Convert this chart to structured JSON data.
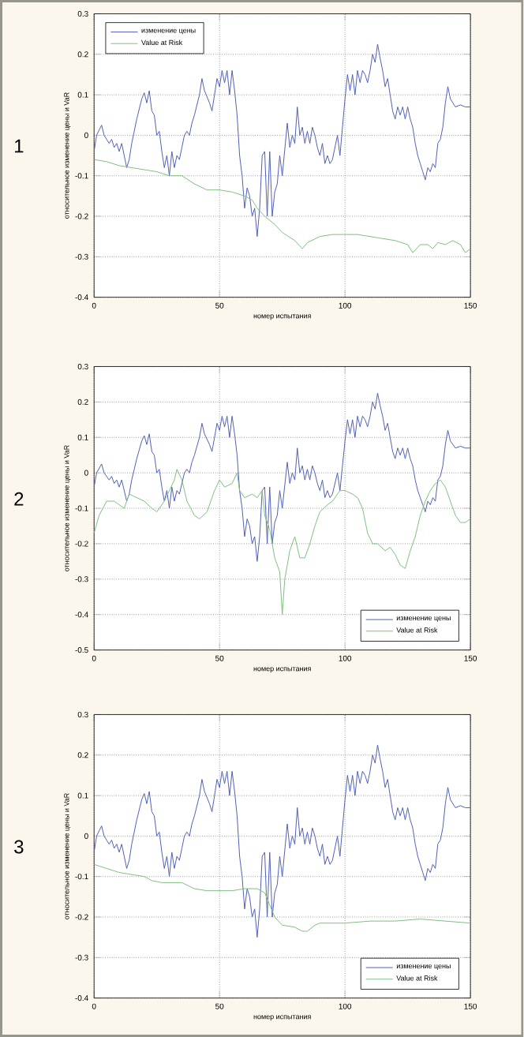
{
  "chart_data": [
    {
      "type": "line",
      "title": "1",
      "xlabel": "номер испытания",
      "ylabel": "относительное изменение цены и VaR",
      "xlim": [
        0,
        150
      ],
      "ylim": [
        -0.4,
        0.3
      ],
      "xticks": [
        0,
        50,
        100,
        150
      ],
      "yticks": [
        -0.4,
        -0.3,
        -0.2,
        -0.1,
        0,
        0.1,
        0.2,
        0.3
      ],
      "grid": true,
      "legend": "top left",
      "marker": "none",
      "line_style": "solid",
      "series": [
        {
          "name": "изменение цены",
          "color": "#5060b8",
          "x": [
            0,
            1,
            3,
            4,
            5,
            6,
            7,
            8,
            9,
            10,
            11,
            13,
            14,
            15,
            17,
            19,
            20,
            21,
            22,
            23,
            24,
            25,
            26,
            27,
            28,
            29,
            30,
            31,
            32,
            33,
            34,
            35,
            36,
            37,
            38,
            39,
            40,
            42,
            43,
            44,
            46,
            47,
            48,
            49,
            50,
            51,
            52,
            53,
            54,
            55,
            56,
            57,
            58,
            59,
            60,
            61,
            62,
            63,
            64,
            65,
            66,
            67,
            68,
            69,
            70,
            71,
            72,
            73,
            74,
            75,
            77,
            78,
            79,
            80,
            81,
            82,
            83,
            84,
            85,
            86,
            87,
            88,
            89,
            90,
            91,
            92,
            93,
            94,
            95,
            97,
            98,
            99,
            100,
            101,
            102,
            103,
            104,
            105,
            106,
            107,
            108,
            109,
            110,
            111,
            112,
            113,
            114,
            115,
            116,
            117,
            118,
            119,
            120,
            121,
            122,
            123,
            124,
            125,
            126,
            127,
            128,
            129,
            130,
            131,
            132,
            133,
            134,
            135,
            136,
            137,
            138,
            139,
            140,
            141,
            142,
            143,
            144,
            146,
            148,
            150
          ],
          "values": [
            -0.04,
            0.0,
            0.025,
            0.0,
            -0.01,
            -0.02,
            -0.01,
            -0.03,
            -0.02,
            -0.04,
            -0.02,
            -0.08,
            -0.06,
            -0.02,
            0.04,
            0.09,
            0.105,
            0.08,
            0.11,
            0.06,
            0.05,
            0.0,
            0.01,
            -0.04,
            -0.08,
            -0.05,
            -0.1,
            -0.04,
            -0.08,
            -0.05,
            -0.06,
            -0.03,
            0.0,
            0.01,
            0.0,
            0.03,
            0.05,
            0.1,
            0.14,
            0.11,
            0.08,
            0.06,
            0.1,
            0.14,
            0.12,
            0.16,
            0.13,
            0.16,
            0.1,
            0.16,
            0.11,
            0.05,
            -0.05,
            -0.1,
            -0.18,
            -0.13,
            -0.15,
            -0.2,
            -0.18,
            -0.25,
            -0.18,
            -0.05,
            -0.04,
            -0.2,
            -0.04,
            -0.2,
            -0.14,
            -0.12,
            -0.05,
            -0.1,
            0.03,
            -0.03,
            0.0,
            -0.02,
            0.07,
            0.0,
            0.02,
            -0.02,
            0.01,
            -0.02,
            0.02,
            0.0,
            -0.03,
            -0.05,
            -0.02,
            -0.07,
            -0.05,
            -0.07,
            -0.06,
            0.0,
            -0.05,
            0.02,
            0.09,
            0.15,
            0.11,
            0.15,
            0.1,
            0.16,
            0.13,
            0.16,
            0.15,
            0.13,
            0.16,
            0.2,
            0.18,
            0.225,
            0.19,
            0.16,
            0.12,
            0.14,
            0.1,
            0.06,
            0.04,
            0.07,
            0.05,
            0.07,
            0.04,
            0.07,
            0.04,
            0.02,
            -0.02,
            -0.05,
            -0.07,
            -0.09,
            -0.11,
            -0.08,
            -0.09,
            -0.07,
            -0.08,
            -0.02,
            -0.01,
            0.02,
            0.08,
            0.12,
            0.09,
            0.08,
            0.07,
            0.075,
            0.07,
            0.07
          ]
        },
        {
          "name": "Value at Risk",
          "color": "#80c080",
          "x": [
            0,
            5,
            10,
            15,
            20,
            25,
            30,
            35,
            40,
            45,
            50,
            55,
            60,
            63,
            65,
            68,
            72,
            75,
            80,
            83,
            85,
            90,
            95,
            100,
            105,
            110,
            115,
            120,
            125,
            127,
            130,
            133,
            135,
            137,
            140,
            143,
            146,
            148,
            150
          ],
          "values": [
            -0.06,
            -0.065,
            -0.075,
            -0.08,
            -0.085,
            -0.09,
            -0.1,
            -0.1,
            -0.12,
            -0.135,
            -0.135,
            -0.14,
            -0.15,
            -0.16,
            -0.18,
            -0.2,
            -0.22,
            -0.24,
            -0.26,
            -0.28,
            -0.265,
            -0.25,
            -0.245,
            -0.245,
            -0.245,
            -0.25,
            -0.255,
            -0.26,
            -0.27,
            -0.29,
            -0.27,
            -0.27,
            -0.28,
            -0.265,
            -0.27,
            -0.26,
            -0.27,
            -0.29,
            -0.28
          ]
        }
      ]
    },
    {
      "type": "line",
      "title": "2",
      "xlabel": "номер испытания",
      "ylabel": "относительное изменение цены и VaR",
      "xlim": [
        0,
        150
      ],
      "ylim": [
        -0.5,
        0.3
      ],
      "xticks": [
        0,
        50,
        100,
        150
      ],
      "yticks": [
        -0.5,
        -0.4,
        -0.3,
        -0.2,
        -0.1,
        0,
        0.1,
        0.2,
        0.3
      ],
      "grid": true,
      "legend": "bottom right",
      "marker": "none",
      "line_style": "solid",
      "series": [
        {
          "name": "изменение цены",
          "color": "#5060b8",
          "x": [
            0,
            1,
            3,
            4,
            5,
            6,
            7,
            8,
            9,
            10,
            11,
            13,
            14,
            15,
            17,
            19,
            20,
            21,
            22,
            23,
            24,
            25,
            26,
            27,
            28,
            29,
            30,
            31,
            32,
            33,
            34,
            35,
            36,
            37,
            38,
            39,
            40,
            42,
            43,
            44,
            46,
            47,
            48,
            49,
            50,
            51,
            52,
            53,
            54,
            55,
            56,
            57,
            58,
            59,
            60,
            61,
            62,
            63,
            64,
            65,
            66,
            67,
            68,
            69,
            70,
            71,
            72,
            73,
            74,
            75,
            77,
            78,
            79,
            80,
            81,
            82,
            83,
            84,
            85,
            86,
            87,
            88,
            89,
            90,
            91,
            92,
            93,
            94,
            95,
            97,
            98,
            99,
            100,
            101,
            102,
            103,
            104,
            105,
            106,
            107,
            108,
            109,
            110,
            111,
            112,
            113,
            114,
            115,
            116,
            117,
            118,
            119,
            120,
            121,
            122,
            123,
            124,
            125,
            126,
            127,
            128,
            129,
            130,
            131,
            132,
            133,
            134,
            135,
            136,
            137,
            138,
            139,
            140,
            141,
            142,
            143,
            144,
            146,
            148,
            150
          ],
          "values": [
            -0.04,
            0.0,
            0.025,
            0.0,
            -0.01,
            -0.02,
            -0.01,
            -0.03,
            -0.02,
            -0.04,
            -0.02,
            -0.08,
            -0.06,
            -0.02,
            0.04,
            0.09,
            0.105,
            0.08,
            0.11,
            0.06,
            0.05,
            0.0,
            0.01,
            -0.04,
            -0.08,
            -0.05,
            -0.1,
            -0.04,
            -0.08,
            -0.05,
            -0.06,
            -0.03,
            0.0,
            0.01,
            0.0,
            0.03,
            0.05,
            0.1,
            0.14,
            0.11,
            0.08,
            0.06,
            0.1,
            0.14,
            0.12,
            0.16,
            0.13,
            0.16,
            0.1,
            0.16,
            0.11,
            0.05,
            -0.05,
            -0.1,
            -0.18,
            -0.13,
            -0.15,
            -0.2,
            -0.18,
            -0.25,
            -0.18,
            -0.05,
            -0.04,
            -0.2,
            -0.04,
            -0.2,
            -0.14,
            -0.12,
            -0.05,
            -0.1,
            0.03,
            -0.03,
            0.0,
            -0.02,
            0.07,
            0.0,
            0.02,
            -0.02,
            0.01,
            -0.02,
            0.02,
            0.0,
            -0.03,
            -0.05,
            -0.02,
            -0.07,
            -0.05,
            -0.07,
            -0.06,
            0.0,
            -0.05,
            0.02,
            0.09,
            0.15,
            0.11,
            0.15,
            0.1,
            0.16,
            0.13,
            0.16,
            0.15,
            0.13,
            0.16,
            0.2,
            0.18,
            0.225,
            0.19,
            0.16,
            0.12,
            0.14,
            0.1,
            0.06,
            0.04,
            0.07,
            0.05,
            0.07,
            0.04,
            0.07,
            0.04,
            0.02,
            -0.02,
            -0.05,
            -0.07,
            -0.09,
            -0.11,
            -0.08,
            -0.09,
            -0.07,
            -0.08,
            -0.02,
            -0.01,
            0.02,
            0.08,
            0.12,
            0.09,
            0.08,
            0.07,
            0.075,
            0.07,
            0.07
          ]
        },
        {
          "name": "Value at Risk",
          "color": "#80c080",
          "x": [
            0,
            2,
            5,
            8,
            10,
            12,
            14,
            17,
            20,
            23,
            25,
            28,
            30,
            32,
            33,
            35,
            37,
            40,
            42,
            45,
            48,
            50,
            52,
            55,
            57,
            58,
            60,
            63,
            65,
            67,
            68,
            70,
            72,
            74,
            75,
            76,
            78,
            80,
            82,
            84,
            86,
            88,
            90,
            93,
            95,
            98,
            100,
            103,
            105,
            107,
            109,
            111,
            113,
            116,
            118,
            120,
            122,
            124,
            126,
            128,
            130,
            132,
            134,
            136,
            138,
            140,
            142,
            144,
            146,
            148,
            150
          ],
          "values": [
            -0.17,
            -0.12,
            -0.08,
            -0.08,
            -0.09,
            -0.1,
            -0.06,
            -0.07,
            -0.08,
            -0.1,
            -0.11,
            -0.08,
            -0.05,
            -0.02,
            0.01,
            -0.02,
            -0.08,
            -0.12,
            -0.13,
            -0.11,
            -0.05,
            -0.02,
            -0.04,
            -0.03,
            0.0,
            -0.05,
            -0.07,
            -0.06,
            -0.07,
            -0.05,
            -0.12,
            -0.16,
            -0.24,
            -0.28,
            -0.4,
            -0.3,
            -0.22,
            -0.18,
            -0.24,
            -0.24,
            -0.2,
            -0.15,
            -0.11,
            -0.09,
            -0.08,
            -0.05,
            -0.05,
            -0.06,
            -0.07,
            -0.1,
            -0.17,
            -0.2,
            -0.2,
            -0.22,
            -0.21,
            -0.23,
            -0.26,
            -0.27,
            -0.22,
            -0.18,
            -0.12,
            -0.08,
            -0.05,
            -0.03,
            -0.02,
            -0.04,
            -0.08,
            -0.12,
            -0.14,
            -0.14,
            -0.13
          ]
        }
      ]
    },
    {
      "type": "line",
      "title": "3",
      "xlabel": "номер испытания",
      "ylabel": "относительное изменение цены и VaR",
      "xlim": [
        0,
        150
      ],
      "ylim": [
        -0.4,
        0.3
      ],
      "xticks": [
        0,
        50,
        100,
        150
      ],
      "yticks": [
        -0.4,
        -0.3,
        -0.2,
        -0.1,
        0,
        0.1,
        0.2,
        0.3
      ],
      "grid": true,
      "legend": "bottom right",
      "marker": "none",
      "line_style": "solid",
      "series": [
        {
          "name": "изменение цены",
          "color": "#5060b8",
          "x": [
            0,
            1,
            3,
            4,
            5,
            6,
            7,
            8,
            9,
            10,
            11,
            13,
            14,
            15,
            17,
            19,
            20,
            21,
            22,
            23,
            24,
            25,
            26,
            27,
            28,
            29,
            30,
            31,
            32,
            33,
            34,
            35,
            36,
            37,
            38,
            39,
            40,
            42,
            43,
            44,
            46,
            47,
            48,
            49,
            50,
            51,
            52,
            53,
            54,
            55,
            56,
            57,
            58,
            59,
            60,
            61,
            62,
            63,
            64,
            65,
            66,
            67,
            68,
            69,
            70,
            71,
            72,
            73,
            74,
            75,
            77,
            78,
            79,
            80,
            81,
            82,
            83,
            84,
            85,
            86,
            87,
            88,
            89,
            90,
            91,
            92,
            93,
            94,
            95,
            97,
            98,
            99,
            100,
            101,
            102,
            103,
            104,
            105,
            106,
            107,
            108,
            109,
            110,
            111,
            112,
            113,
            114,
            115,
            116,
            117,
            118,
            119,
            120,
            121,
            122,
            123,
            124,
            125,
            126,
            127,
            128,
            129,
            130,
            131,
            132,
            133,
            134,
            135,
            136,
            137,
            138,
            139,
            140,
            141,
            142,
            143,
            144,
            146,
            148,
            150
          ],
          "values": [
            -0.04,
            0.0,
            0.025,
            0.0,
            -0.01,
            -0.02,
            -0.01,
            -0.03,
            -0.02,
            -0.04,
            -0.02,
            -0.08,
            -0.06,
            -0.02,
            0.04,
            0.09,
            0.105,
            0.08,
            0.11,
            0.06,
            0.05,
            0.0,
            0.01,
            -0.04,
            -0.08,
            -0.05,
            -0.1,
            -0.04,
            -0.08,
            -0.05,
            -0.06,
            -0.03,
            0.0,
            0.01,
            0.0,
            0.03,
            0.05,
            0.1,
            0.14,
            0.11,
            0.08,
            0.06,
            0.1,
            0.14,
            0.12,
            0.16,
            0.13,
            0.16,
            0.1,
            0.16,
            0.11,
            0.05,
            -0.05,
            -0.1,
            -0.18,
            -0.13,
            -0.15,
            -0.2,
            -0.18,
            -0.25,
            -0.18,
            -0.05,
            -0.04,
            -0.2,
            -0.04,
            -0.2,
            -0.14,
            -0.12,
            -0.05,
            -0.1,
            0.03,
            -0.03,
            0.0,
            -0.02,
            0.07,
            0.0,
            0.02,
            -0.02,
            0.01,
            -0.02,
            0.02,
            0.0,
            -0.03,
            -0.05,
            -0.02,
            -0.07,
            -0.05,
            -0.07,
            -0.06,
            0.0,
            -0.05,
            0.02,
            0.09,
            0.15,
            0.11,
            0.15,
            0.1,
            0.16,
            0.13,
            0.16,
            0.15,
            0.13,
            0.16,
            0.2,
            0.18,
            0.225,
            0.19,
            0.16,
            0.12,
            0.14,
            0.1,
            0.06,
            0.04,
            0.07,
            0.05,
            0.07,
            0.04,
            0.07,
            0.04,
            0.02,
            -0.02,
            -0.05,
            -0.07,
            -0.09,
            -0.11,
            -0.08,
            -0.09,
            -0.07,
            -0.08,
            -0.02,
            -0.01,
            0.02,
            0.08,
            0.12,
            0.09,
            0.08,
            0.07,
            0.075,
            0.07,
            0.07
          ]
        },
        {
          "name": "Value at Risk",
          "color": "#80c080",
          "x": [
            0,
            5,
            10,
            15,
            20,
            23,
            27,
            30,
            35,
            40,
            45,
            55,
            60,
            65,
            68,
            70,
            72,
            75,
            80,
            83,
            85,
            88,
            90,
            100,
            110,
            120,
            130,
            140,
            150
          ],
          "values": [
            -0.07,
            -0.08,
            -0.09,
            -0.095,
            -0.1,
            -0.11,
            -0.115,
            -0.115,
            -0.115,
            -0.13,
            -0.135,
            -0.135,
            -0.13,
            -0.13,
            -0.14,
            -0.17,
            -0.2,
            -0.22,
            -0.225,
            -0.235,
            -0.235,
            -0.22,
            -0.215,
            -0.215,
            -0.21,
            -0.21,
            -0.205,
            -0.21,
            -0.215
          ]
        }
      ]
    }
  ]
}
